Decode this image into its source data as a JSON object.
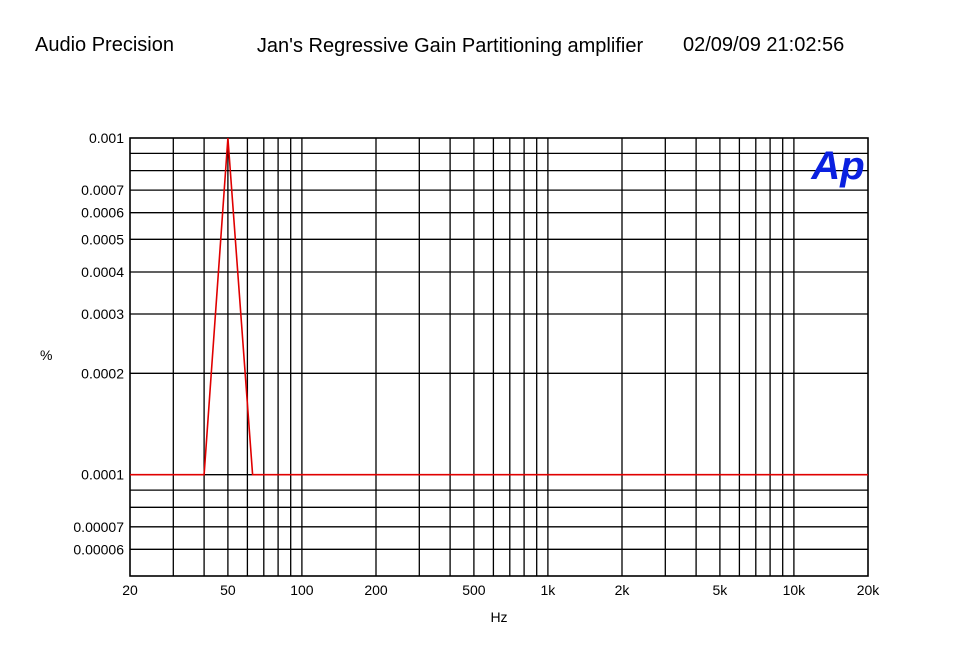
{
  "header": {
    "brand": "Audio Precision",
    "title": "Jan's Regressive Gain Partitioning amplifier",
    "datetime": "02/09/09 21:02:56"
  },
  "logo_text": "Ap",
  "colors": {
    "trace": "#e00000",
    "logo": "#0a20e0",
    "grid": "#000000"
  },
  "chart_data": {
    "type": "line",
    "xlabel": "Hz",
    "ylabel": "%",
    "xscale": "log",
    "yscale": "log",
    "xlim": [
      20,
      20000
    ],
    "ylim": [
      5e-05,
      0.001
    ],
    "x_ticks": [
      {
        "v": 20,
        "label": "20"
      },
      {
        "v": 50,
        "label": "50"
      },
      {
        "v": 100,
        "label": "100"
      },
      {
        "v": 200,
        "label": "200"
      },
      {
        "v": 500,
        "label": "500"
      },
      {
        "v": 1000,
        "label": "1k"
      },
      {
        "v": 2000,
        "label": "2k"
      },
      {
        "v": 5000,
        "label": "5k"
      },
      {
        "v": 10000,
        "label": "10k"
      },
      {
        "v": 20000,
        "label": "20k"
      }
    ],
    "y_ticks": [
      {
        "v": 0.001,
        "label": "0.001"
      },
      {
        "v": 0.0007,
        "label": "0.0007"
      },
      {
        "v": 0.0006,
        "label": "0.0006"
      },
      {
        "v": 0.0005,
        "label": "0.0005"
      },
      {
        "v": 0.0004,
        "label": "0.0004"
      },
      {
        "v": 0.0003,
        "label": "0.0003"
      },
      {
        "v": 0.0002,
        "label": "0.0002"
      },
      {
        "v": 0.0001,
        "label": "0.0001"
      },
      {
        "v": 7e-05,
        "label": "0.00007"
      },
      {
        "v": 6e-05,
        "label": "0.00006"
      }
    ],
    "x_grid": [
      30,
      40,
      50,
      60,
      70,
      80,
      90,
      100,
      200,
      300,
      400,
      500,
      600,
      700,
      800,
      900,
      1000,
      2000,
      3000,
      4000,
      5000,
      6000,
      7000,
      8000,
      9000,
      10000
    ],
    "y_grid": [
      6e-05,
      7e-05,
      8e-05,
      9e-05,
      0.0001,
      0.0002,
      0.0003,
      0.0004,
      0.0005,
      0.0006,
      0.0007,
      0.0008,
      0.0009
    ],
    "series": [
      {
        "x": [
          20,
          40,
          50,
          63,
          100,
          1000,
          10000,
          20000
        ],
        "y": [
          0.0001,
          0.0001,
          0.001,
          0.0001,
          0.0001,
          0.0001,
          0.0001,
          0.0001
        ]
      }
    ],
    "grid": true
  }
}
